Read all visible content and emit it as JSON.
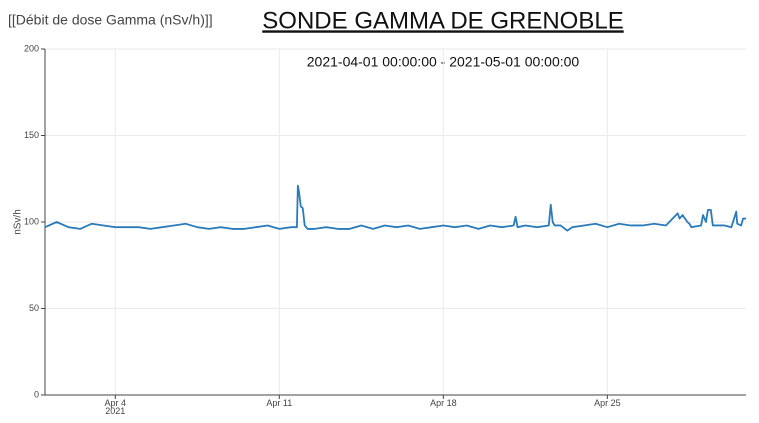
{
  "page_label": "[[Débit de dose Gamma (nSv/h)]]",
  "chart_data": {
    "type": "line",
    "title": "SONDE GAMMA DE GRENOBLE",
    "subtitle": "2021-04-01 00:00:00 - 2021-05-01 00:00:00",
    "y_label": "nSv/h",
    "color": "#2b7bba",
    "grid": true,
    "ylim": [
      0,
      200
    ],
    "yticks": [
      0,
      50,
      100,
      150,
      200
    ],
    "xlim": [
      "2021-04-01 00:00",
      "2021-04-30 22:00"
    ],
    "xticks": [
      {
        "value": "2021-04-04 00:00",
        "label": "Apr 4\n2021"
      },
      {
        "value": "2021-04-11 00:00",
        "label": "Apr 11"
      },
      {
        "value": "2021-04-18 00:00",
        "label": "Apr 18"
      },
      {
        "value": "2021-04-25 00:00",
        "label": "Apr 25"
      }
    ],
    "x": [
      "2021-04-01 00:00",
      "2021-04-01 12:00",
      "2021-04-02 00:00",
      "2021-04-02 12:00",
      "2021-04-03 00:00",
      "2021-04-03 12:00",
      "2021-04-04 00:00",
      "2021-04-04 12:00",
      "2021-04-05 00:00",
      "2021-04-05 12:00",
      "2021-04-06 00:00",
      "2021-04-06 12:00",
      "2021-04-07 00:00",
      "2021-04-07 12:00",
      "2021-04-08 00:00",
      "2021-04-08 12:00",
      "2021-04-09 00:00",
      "2021-04-09 12:00",
      "2021-04-10 00:00",
      "2021-04-10 12:00",
      "2021-04-11 00:00",
      "2021-04-11 12:00",
      "2021-04-11 18:00",
      "2021-04-11 19:00",
      "2021-04-11 20:00",
      "2021-04-11 22:00",
      "2021-04-12 00:00",
      "2021-04-12 02:00",
      "2021-04-12 05:00",
      "2021-04-12 12:00",
      "2021-04-13 00:00",
      "2021-04-13 12:00",
      "2021-04-14 00:00",
      "2021-04-14 12:00",
      "2021-04-15 00:00",
      "2021-04-15 12:00",
      "2021-04-16 00:00",
      "2021-04-16 12:00",
      "2021-04-17 00:00",
      "2021-04-17 12:00",
      "2021-04-18 00:00",
      "2021-04-18 12:00",
      "2021-04-19 00:00",
      "2021-04-19 12:00",
      "2021-04-20 00:00",
      "2021-04-20 12:00",
      "2021-04-21 00:00",
      "2021-04-21 02:00",
      "2021-04-21 04:00",
      "2021-04-21 12:00",
      "2021-04-22 00:00",
      "2021-04-22 12:00",
      "2021-04-22 14:00",
      "2021-04-22 16:00",
      "2021-04-22 18:00",
      "2021-04-23 00:00",
      "2021-04-23 07:00",
      "2021-04-23 12:00",
      "2021-04-24 00:00",
      "2021-04-24 12:00",
      "2021-04-25 00:00",
      "2021-04-25 12:00",
      "2021-04-26 00:00",
      "2021-04-26 12:00",
      "2021-04-27 00:00",
      "2021-04-27 12:00",
      "2021-04-28 00:00",
      "2021-04-28 02:00",
      "2021-04-28 05:00",
      "2021-04-28 10:00",
      "2021-04-28 12:00",
      "2021-04-28 14:00",
      "2021-04-29 00:00",
      "2021-04-29 02:00",
      "2021-04-29 05:00",
      "2021-04-29 07:00",
      "2021-04-29 10:00",
      "2021-04-29 12:00",
      "2021-04-30 00:00",
      "2021-04-30 07:00",
      "2021-04-30 12:00",
      "2021-04-30 13:00",
      "2021-04-30 17:00",
      "2021-04-30 19:00",
      "2021-04-30 22:00"
    ],
    "values": [
      97,
      100,
      97,
      96,
      99,
      98,
      97,
      97,
      97,
      96,
      97,
      98,
      99,
      97,
      96,
      97,
      96,
      96,
      97,
      98,
      96,
      97,
      97,
      121,
      118,
      109,
      108,
      98,
      96,
      96,
      97,
      96,
      96,
      98,
      96,
      98,
      97,
      98,
      96,
      97,
      98,
      97,
      98,
      96,
      98,
      97,
      98,
      103,
      97,
      98,
      97,
      98,
      110,
      100,
      98,
      98,
      95,
      97,
      98,
      99,
      97,
      99,
      98,
      98,
      99,
      98,
      105,
      102,
      104,
      100,
      99,
      97,
      98,
      104,
      100,
      107,
      107,
      98,
      98,
      97,
      106,
      99,
      98,
      102,
      102
    ]
  }
}
